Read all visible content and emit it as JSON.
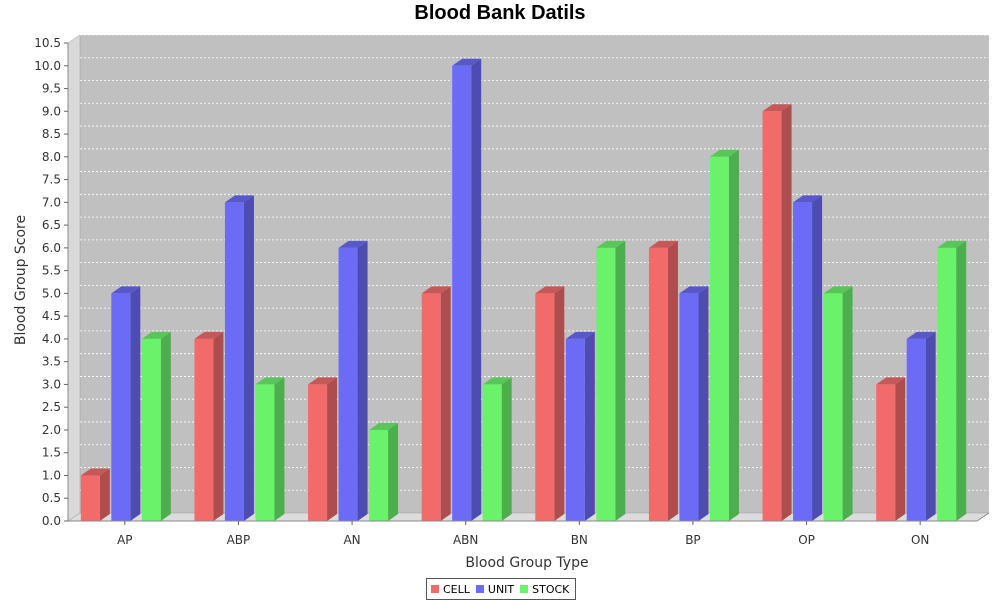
{
  "chart_data": {
    "type": "bar",
    "title": "Blood Bank Datils",
    "xlabel": "Blood Group Type",
    "ylabel": "Blood Group Score",
    "categories": [
      "AP",
      "ABP",
      "AN",
      "ABN",
      "BN",
      "BP",
      "OP",
      "ON"
    ],
    "series": [
      {
        "name": "CELL",
        "values": [
          1,
          4,
          3,
          5,
          5,
          6,
          9,
          3
        ],
        "color": "#f26b6b"
      },
      {
        "name": "UNIT",
        "values": [
          5,
          7,
          6,
          10,
          4,
          5,
          7,
          4
        ],
        "color": "#6b6bf6"
      },
      {
        "name": "STOCK",
        "values": [
          4,
          3,
          2,
          3,
          6,
          8,
          5,
          6
        ],
        "color": "#6bf26b"
      }
    ],
    "ylim": [
      0,
      10.5
    ],
    "ytick_step": 0.5,
    "grid": true,
    "legend": "bottom-center",
    "plot_background": "#c0c0c0"
  }
}
